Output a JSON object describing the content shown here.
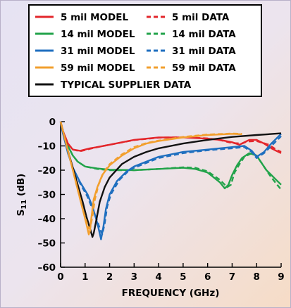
{
  "chart_data": {
    "type": "line",
    "xlabel": "FREQUENCY (GHz)",
    "ylabel_main": "S",
    "ylabel_sub": "11",
    "ylabel_unit": " (dB)",
    "xlim": [
      0,
      9
    ],
    "ylim": [
      -60,
      0
    ],
    "xticks": [
      "0",
      "1",
      "2",
      "3",
      "4",
      "5",
      "6",
      "7",
      "8",
      "9"
    ],
    "yticks": [
      "0",
      "–10",
      "–20",
      "–30",
      "–40",
      "–50",
      "–60"
    ],
    "ytick_values": [
      0,
      -10,
      -20,
      -30,
      -40,
      -50,
      -60
    ],
    "grid": false,
    "legend_position": "top",
    "series": [
      {
        "name": "5 mil MODEL",
        "color": "#e3262b",
        "dash": "solid",
        "x": [
          0,
          0.1,
          0.3,
          0.5,
          0.8,
          1.2,
          1.5,
          2,
          3,
          4,
          5,
          6,
          6.5,
          7,
          7.3,
          7.5,
          7.7,
          8,
          8.3,
          8.6,
          8.8,
          9
        ],
        "y": [
          0,
          -4,
          -9,
          -11.5,
          -12,
          -11,
          -10.5,
          -9.5,
          -7.5,
          -6.5,
          -6.5,
          -7,
          -7.5,
          -8.5,
          -9.5,
          -8.5,
          -7.5,
          -7.5,
          -9,
          -11,
          -12,
          -13
        ]
      },
      {
        "name": "5 mil DATA",
        "color": "#e3262b",
        "dash": "dashed",
        "x": [
          0,
          0.1,
          0.3,
          0.5,
          0.8,
          1.2,
          1.5,
          2,
          3,
          4,
          5,
          6,
          6.5,
          7,
          7.4,
          7.6,
          8,
          8.5,
          8.8,
          9
        ],
        "y": [
          0,
          -4,
          -9,
          -11.5,
          -12.2,
          -11.2,
          -10.5,
          -9.5,
          -7.6,
          -6.6,
          -6.4,
          -6.9,
          -7.6,
          -8.8,
          -9,
          -8.2,
          -8,
          -9.5,
          -11.5,
          -12.5
        ]
      },
      {
        "name": "14 mil MODEL",
        "color": "#22a34a",
        "dash": "solid",
        "x": [
          0,
          0.1,
          0.3,
          0.5,
          0.7,
          1,
          1.5,
          2,
          3,
          4,
          5,
          5.5,
          6,
          6.5,
          6.7,
          6.85,
          7,
          7.2,
          7.4,
          7.7,
          8,
          8.2,
          8.4,
          8.6,
          8.8,
          9
        ],
        "y": [
          0,
          -4,
          -10,
          -14,
          -16.5,
          -18.5,
          -19.3,
          -19.8,
          -20,
          -19.5,
          -19,
          -19.5,
          -21,
          -25,
          -27.5,
          -26,
          -22,
          -18,
          -15,
          -13,
          -14,
          -17,
          -20,
          -22,
          -24,
          -26
        ]
      },
      {
        "name": "14 mil DATA",
        "color": "#22a34a",
        "dash": "dashed",
        "x": [
          0,
          0.1,
          0.3,
          0.5,
          0.7,
          1,
          1.5,
          2,
          3,
          4,
          5,
          5.5,
          6,
          6.5,
          6.8,
          6.95,
          7.1,
          7.3,
          7.5,
          7.8,
          8,
          8.2,
          8.4,
          8.6,
          8.8,
          9
        ],
        "y": [
          0,
          -4,
          -10,
          -14,
          -16.5,
          -18.5,
          -19.5,
          -20,
          -20,
          -19.5,
          -18.8,
          -19,
          -20.5,
          -24,
          -27,
          -26,
          -21,
          -17.5,
          -14.5,
          -13,
          -14,
          -17,
          -20,
          -23,
          -25.5,
          -28
        ]
      },
      {
        "name": "31 mil MODEL",
        "color": "#1f6fbf",
        "dash": "solid",
        "x": [
          0,
          0.1,
          0.3,
          0.5,
          0.8,
          1.1,
          1.3,
          1.45,
          1.55,
          1.65,
          1.75,
          1.85,
          2,
          2.3,
          2.7,
          3,
          4,
          5,
          6,
          7,
          7.5,
          7.8,
          8,
          8.3,
          8.6,
          9
        ],
        "y": [
          0,
          -5,
          -13,
          -19,
          -25,
          -30,
          -35,
          -40,
          -44,
          -48.5,
          -43,
          -36,
          -30,
          -24.5,
          -20.5,
          -18.5,
          -14.5,
          -12.5,
          -11.5,
          -10.5,
          -10,
          -12,
          -14.5,
          -12.5,
          -9,
          -5
        ]
      },
      {
        "name": "31 mil DATA",
        "color": "#1f6fbf",
        "dash": "dashed",
        "x": [
          0,
          0.1,
          0.3,
          0.5,
          0.8,
          1.1,
          1.3,
          1.5,
          1.6,
          1.7,
          1.8,
          1.9,
          2.05,
          2.4,
          2.8,
          3,
          4,
          5,
          6,
          7,
          7.5,
          7.8,
          8,
          8.3,
          8.6,
          9
        ],
        "y": [
          0,
          -5,
          -13,
          -19,
          -25.5,
          -31,
          -36,
          -41,
          -44,
          -46.5,
          -42,
          -35,
          -30,
          -24,
          -20,
          -19,
          -15,
          -13,
          -11.8,
          -11,
          -10.5,
          -12.5,
          -15,
          -13,
          -10,
          -6
        ]
      },
      {
        "name": "59 mil MODEL",
        "color": "#f29f2e",
        "dash": "solid",
        "x": [
          0,
          0.1,
          0.3,
          0.5,
          0.7,
          0.9,
          1.05,
          1.15,
          1.2,
          1.25,
          1.35,
          1.5,
          1.7,
          2,
          2.5,
          3,
          3.5,
          4,
          5,
          6,
          7,
          7.4
        ],
        "y": [
          0,
          -4,
          -12,
          -20,
          -28,
          -36,
          -42,
          -46.5,
          -45,
          -40,
          -32,
          -27,
          -22,
          -18,
          -14,
          -11,
          -9,
          -8,
          -6.5,
          -5.5,
          -5,
          -5.2
        ]
      },
      {
        "name": "59 mil DATA",
        "color": "#f29f2e",
        "dash": "dashed",
        "x": [
          0,
          0.1,
          0.3,
          0.5,
          0.7,
          0.9,
          1.05,
          1.15,
          1.22,
          1.3,
          1.4,
          1.55,
          1.75,
          2,
          2.5,
          3,
          3.5,
          4,
          5,
          6,
          7,
          7.4
        ],
        "y": [
          0,
          -4,
          -12,
          -20,
          -28,
          -36,
          -41,
          -44,
          -43.5,
          -39,
          -32,
          -26,
          -21,
          -17.5,
          -13.5,
          -10.5,
          -8.8,
          -7.8,
          -6.3,
          -5.3,
          -4.9,
          -5
        ]
      },
      {
        "name": "TYPICAL SUPPLIER DATA",
        "color": "#111111",
        "dash": "solid",
        "x": [
          0,
          0.1,
          0.3,
          0.5,
          0.7,
          0.9,
          1.05,
          1.2,
          1.3,
          1.35,
          1.45,
          1.6,
          1.8,
          2,
          2.5,
          3,
          3.5,
          4,
          5,
          6,
          7,
          8,
          9
        ],
        "y": [
          0,
          -4,
          -12,
          -19,
          -26,
          -33,
          -39,
          -44,
          -47.5,
          -46,
          -41,
          -33,
          -27,
          -23,
          -17.5,
          -14.5,
          -12.5,
          -11,
          -9,
          -7.5,
          -6.3,
          -5.5,
          -4.8
        ]
      }
    ]
  }
}
